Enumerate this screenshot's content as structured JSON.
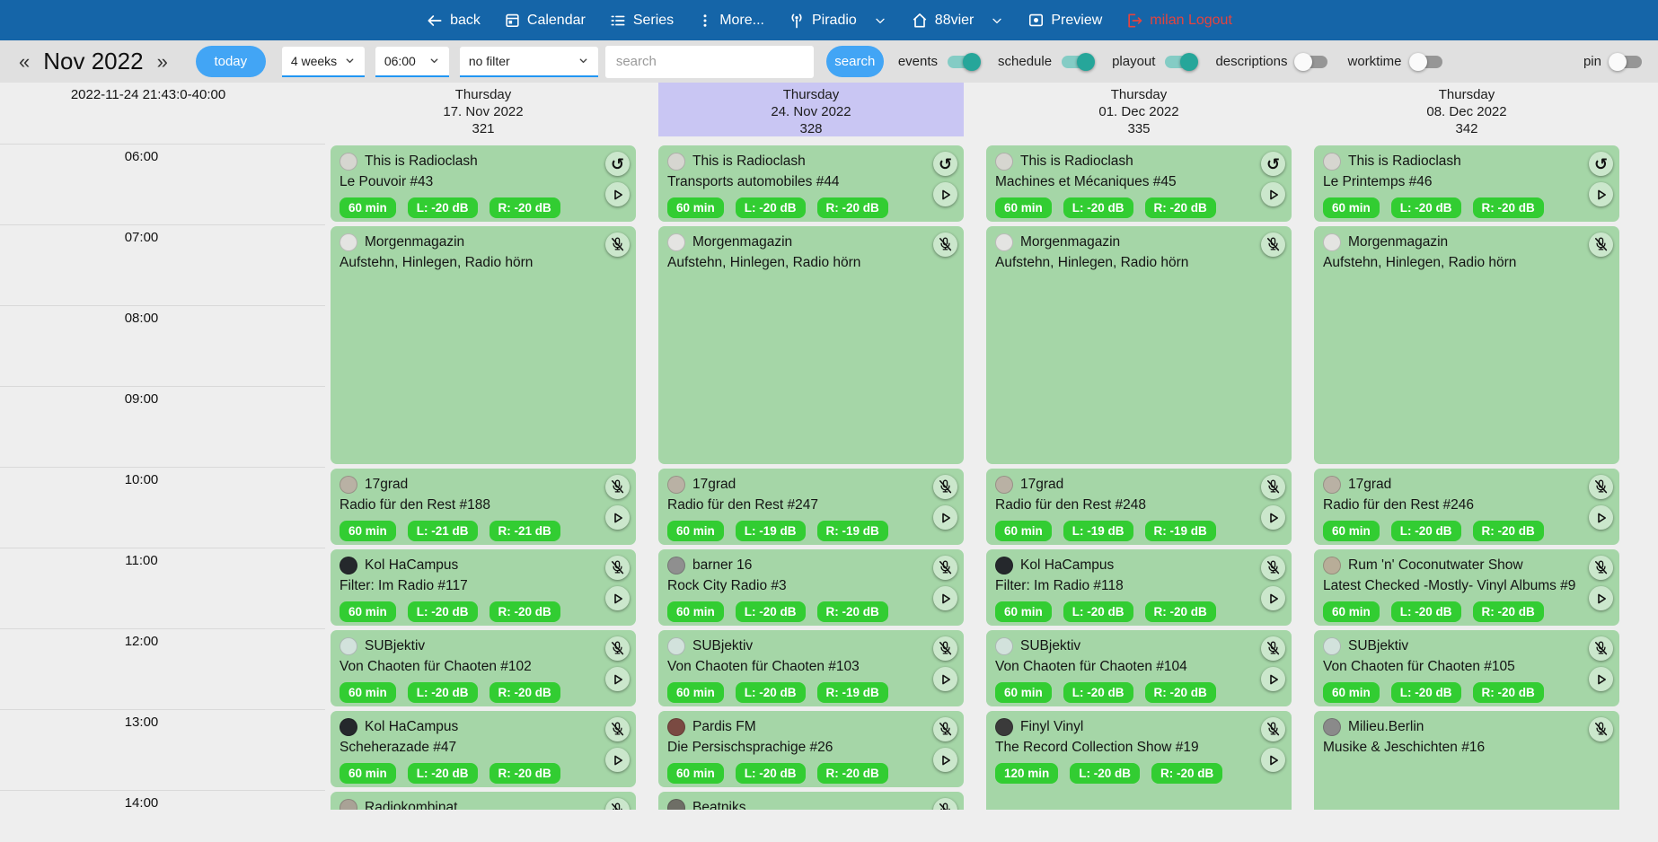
{
  "navbar": {
    "back": "back",
    "calendar": "Calendar",
    "series": "Series",
    "more": "More...",
    "station": "Piradio",
    "channel": "88vier",
    "preview": "Preview",
    "logout": "milan Logout"
  },
  "toolbar": {
    "prev_symbol": "«",
    "month_label": "Nov 2022",
    "next_symbol": "»",
    "today_label": "today",
    "weeks_select_value": "4 weeks",
    "time_select_value": "06:00",
    "filter_select_value": "no filter",
    "search_placeholder": "search",
    "search_button_label": "search",
    "toggles": [
      {
        "label": "events",
        "on": true
      },
      {
        "label": "schedule",
        "on": true
      },
      {
        "label": "playout",
        "on": true
      },
      {
        "label": "descriptions",
        "on": false
      },
      {
        "label": "worktime",
        "on": false
      },
      {
        "label": "pin",
        "on": false
      }
    ]
  },
  "calendar": {
    "now_label": "2022-11-24 21:43:0-40:00",
    "time_labels": [
      "06:00",
      "07:00",
      "08:00",
      "09:00",
      "10:00",
      "11:00",
      "12:00",
      "13:00",
      "14:00"
    ],
    "columns": [
      {
        "weekday": "Thursday",
        "date": "17. Nov 2022",
        "day_number": "321",
        "highlighted": false,
        "events": [
          {
            "show": "This is Radioclash",
            "episode": "Le Pouvoir #43",
            "badges": [
              "60 min",
              "L: -20 dB",
              "R: -20 dB"
            ],
            "start_row": 0,
            "hours": 1,
            "buttons": [
              "repeat",
              "play"
            ],
            "avatar_color": "#d6d6d0"
          },
          {
            "show": "Morgenmagazin",
            "episode": "Aufstehn, Hinlegen, Radio hörn",
            "badges": [],
            "start_row": 1,
            "hours": 3,
            "buttons": [
              "mic-off"
            ],
            "avatar_color": "#e4e4e2"
          },
          {
            "show": "17grad",
            "episode": "Radio für den Rest #188",
            "badges": [
              "60 min",
              "L: -21 dB",
              "R: -21 dB"
            ],
            "start_row": 4,
            "hours": 1,
            "buttons": [
              "mic-off",
              "play"
            ],
            "avatar_color": "#b9b1a4"
          },
          {
            "show": "Kol HaCampus",
            "episode": "Filter: Im Radio #117",
            "badges": [
              "60 min",
              "L: -20 dB",
              "R: -20 dB"
            ],
            "start_row": 5,
            "hours": 1,
            "buttons": [
              "mic-off",
              "play"
            ],
            "avatar_color": "#25282c"
          },
          {
            "show": "SUBjektiv",
            "episode": "Von Chaoten für Chaoten #102",
            "badges": [
              "60 min",
              "L: -20 dB",
              "R: -20 dB"
            ],
            "start_row": 6,
            "hours": 1,
            "buttons": [
              "mic-off",
              "play"
            ],
            "avatar_color": "#d2e2dc"
          },
          {
            "show": "Kol HaCampus",
            "episode": "Scheherazade #47",
            "badges": [
              "60 min",
              "L: -20 dB",
              "R: -20 dB"
            ],
            "start_row": 7,
            "hours": 1,
            "buttons": [
              "mic-off",
              "play"
            ],
            "avatar_color": "#25282c"
          },
          {
            "show": "Radiokombinat",
            "episode": "",
            "badges": [],
            "start_row": 8,
            "hours": 1,
            "buttons": [
              "mic-off"
            ],
            "avatar_color": "#a9a296"
          }
        ]
      },
      {
        "weekday": "Thursday",
        "date": "24. Nov 2022",
        "day_number": "328",
        "highlighted": true,
        "events": [
          {
            "show": "This is Radioclash",
            "episode": "Transports automobiles #44",
            "badges": [
              "60 min",
              "L: -20 dB",
              "R: -20 dB"
            ],
            "start_row": 0,
            "hours": 1,
            "buttons": [
              "repeat",
              "play"
            ],
            "avatar_color": "#d6d6d0"
          },
          {
            "show": "Morgenmagazin",
            "episode": "Aufstehn, Hinlegen, Radio hörn",
            "badges": [],
            "start_row": 1,
            "hours": 3,
            "buttons": [
              "mic-off"
            ],
            "avatar_color": "#e4e4e2"
          },
          {
            "show": "17grad",
            "episode": "Radio für den Rest #247",
            "badges": [
              "60 min",
              "L: -19 dB",
              "R: -19 dB"
            ],
            "start_row": 4,
            "hours": 1,
            "buttons": [
              "mic-off",
              "play"
            ],
            "avatar_color": "#b9b1a4"
          },
          {
            "show": "barner 16",
            "episode": "Rock City Radio #3",
            "badges": [
              "60 min",
              "L: -20 dB",
              "R: -20 dB"
            ],
            "start_row": 5,
            "hours": 1,
            "buttons": [
              "mic-off",
              "play"
            ],
            "avatar_color": "#8f8f8f"
          },
          {
            "show": "SUBjektiv",
            "episode": "Von Chaoten für Chaoten #103",
            "badges": [
              "60 min",
              "L: -20 dB",
              "R: -19 dB"
            ],
            "start_row": 6,
            "hours": 1,
            "buttons": [
              "mic-off",
              "play"
            ],
            "avatar_color": "#d2e2dc"
          },
          {
            "show": "Pardis FM",
            "episode": "Die Persischsprachige #26",
            "badges": [
              "60 min",
              "L: -20 dB",
              "R: -20 dB"
            ],
            "start_row": 7,
            "hours": 1,
            "buttons": [
              "mic-off",
              "play"
            ],
            "avatar_color": "#7a4a42"
          },
          {
            "show": "Beatniks",
            "episode": "",
            "badges": [],
            "start_row": 8,
            "hours": 1,
            "buttons": [
              "mic-off"
            ],
            "avatar_color": "#6e6e66"
          }
        ]
      },
      {
        "weekday": "Thursday",
        "date": "01. Dec 2022",
        "day_number": "335",
        "highlighted": false,
        "events": [
          {
            "show": "This is Radioclash",
            "episode": "Machines et Mécaniques #45",
            "badges": [
              "60 min",
              "L: -20 dB",
              "R: -20 dB"
            ],
            "start_row": 0,
            "hours": 1,
            "buttons": [
              "repeat",
              "play"
            ],
            "avatar_color": "#d6d6d0"
          },
          {
            "show": "Morgenmagazin",
            "episode": "Aufstehn, Hinlegen, Radio hörn",
            "badges": [],
            "start_row": 1,
            "hours": 3,
            "buttons": [
              "mic-off"
            ],
            "avatar_color": "#e4e4e2"
          },
          {
            "show": "17grad",
            "episode": "Radio für den Rest #248",
            "badges": [
              "60 min",
              "L: -19 dB",
              "R: -19 dB"
            ],
            "start_row": 4,
            "hours": 1,
            "buttons": [
              "mic-off",
              "play"
            ],
            "avatar_color": "#b9b1a4"
          },
          {
            "show": "Kol HaCampus",
            "episode": "Filter: Im Radio #118",
            "badges": [
              "60 min",
              "L: -20 dB",
              "R: -20 dB"
            ],
            "start_row": 5,
            "hours": 1,
            "buttons": [
              "mic-off",
              "play"
            ],
            "avatar_color": "#25282c"
          },
          {
            "show": "SUBjektiv",
            "episode": "Von Chaoten für Chaoten #104",
            "badges": [
              "60 min",
              "L: -20 dB",
              "R: -20 dB"
            ],
            "start_row": 6,
            "hours": 1,
            "buttons": [
              "mic-off",
              "play"
            ],
            "avatar_color": "#d2e2dc"
          },
          {
            "show": "Finyl Vinyl",
            "episode": "The Record Collection Show #19",
            "badges": [
              "120 min",
              "L: -20 dB",
              "R: -20 dB"
            ],
            "start_row": 7,
            "hours": 2,
            "buttons": [
              "mic-off",
              "play"
            ],
            "avatar_color": "#3a3a3a"
          }
        ]
      },
      {
        "weekday": "Thursday",
        "date": "08. Dec 2022",
        "day_number": "342",
        "highlighted": false,
        "events": [
          {
            "show": "This is Radioclash",
            "episode": "Le Printemps #46",
            "badges": [
              "60 min",
              "L: -20 dB",
              "R: -20 dB"
            ],
            "start_row": 0,
            "hours": 1,
            "buttons": [
              "repeat",
              "play"
            ],
            "avatar_color": "#d6d6d0"
          },
          {
            "show": "Morgenmagazin",
            "episode": "Aufstehn, Hinlegen, Radio hörn",
            "badges": [],
            "start_row": 1,
            "hours": 3,
            "buttons": [
              "mic-off"
            ],
            "avatar_color": "#e4e4e2"
          },
          {
            "show": "17grad",
            "episode": "Radio für den Rest #246",
            "badges": [
              "60 min",
              "L: -20 dB",
              "R: -20 dB"
            ],
            "start_row": 4,
            "hours": 1,
            "buttons": [
              "mic-off",
              "play"
            ],
            "avatar_color": "#b9b1a4"
          },
          {
            "show": "Rum 'n' Coconutwater Show",
            "episode": "Latest Checked -Mostly- Vinyl Albums #9",
            "badges": [
              "60 min",
              "L: -20 dB",
              "R: -20 dB"
            ],
            "start_row": 5,
            "hours": 1,
            "buttons": [
              "mic-off",
              "play"
            ],
            "avatar_color": "#b8ad98"
          },
          {
            "show": "SUBjektiv",
            "episode": "Von Chaoten für Chaoten #105",
            "badges": [
              "60 min",
              "L: -20 dB",
              "R: -20 dB"
            ],
            "start_row": 6,
            "hours": 1,
            "buttons": [
              "mic-off",
              "play"
            ],
            "avatar_color": "#d2e2dc"
          },
          {
            "show": "Milieu.Berlin",
            "episode": "Musike & Jeschichten #16",
            "badges": [],
            "start_row": 7,
            "hours": 2,
            "buttons": [
              "mic-off"
            ],
            "avatar_color": "#8a8a8a"
          }
        ]
      }
    ]
  },
  "colors": {
    "navbar_blue": "#1565a8",
    "accent_blue": "#42a5f5",
    "underline_blue": "#2196f3",
    "logout_red": "#e5433e",
    "card_green": "#a5d6a7",
    "badge_green": "#32cd32",
    "toggle_teal": "#26a69a",
    "highlight_lavender": "#c9c6f3"
  }
}
